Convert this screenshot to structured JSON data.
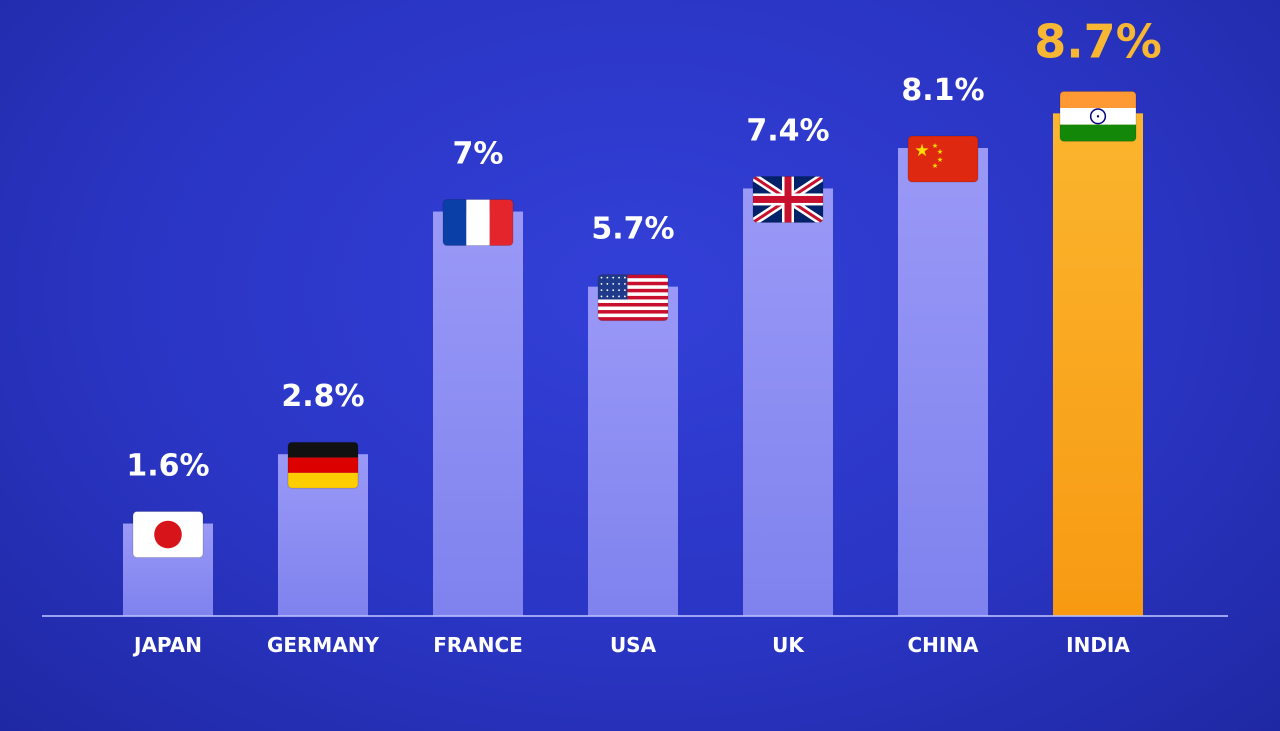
{
  "chart_data": {
    "type": "bar",
    "title": "",
    "xlabel": "",
    "ylabel": "",
    "ylim": [
      0,
      9
    ],
    "grid": false,
    "categories": [
      "JAPAN",
      "GERMANY",
      "FRANCE",
      "USA",
      "UK",
      "CHINA",
      "INDIA"
    ],
    "values": [
      1.6,
      2.8,
      7,
      5.7,
      7.4,
      8.1,
      8.7
    ],
    "value_labels": [
      "1.6%",
      "2.8%",
      "7%",
      "5.7%",
      "7.4%",
      "8.1%",
      "8.7%"
    ],
    "flag_icons": [
      "japan-flag-icon",
      "germany-flag-icon",
      "france-flag-icon",
      "usa-flag-icon",
      "uk-flag-icon",
      "china-flag-icon",
      "india-flag-icon"
    ],
    "highlight_category": "INDIA",
    "colors": {
      "background": "#2a35c4",
      "bar": "#8f8ff5",
      "bar_highlight": "#f9a21b",
      "label_highlight": "#f7b733",
      "text": "#ffffff"
    }
  }
}
